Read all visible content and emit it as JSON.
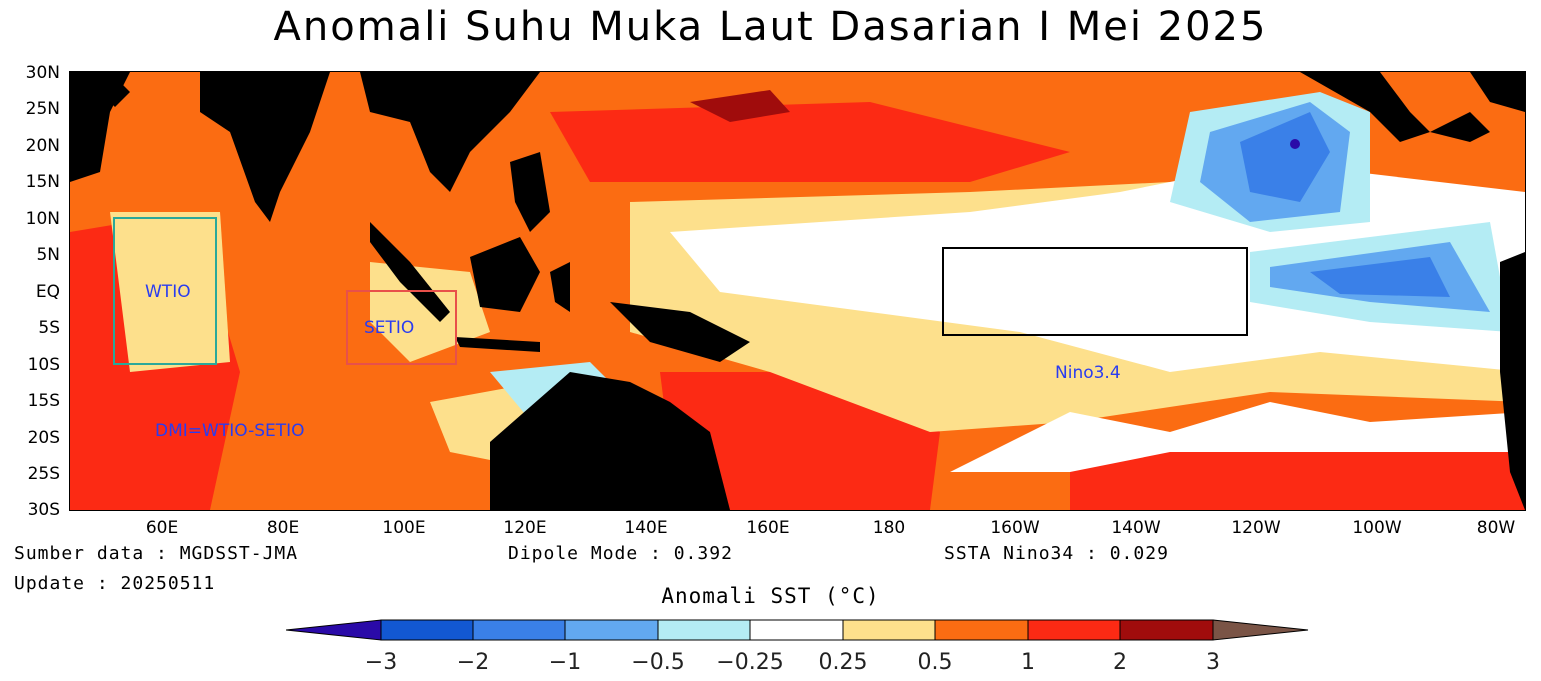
{
  "title": "Anomali Suhu Muka Laut Dasarian I Mei 2025",
  "y_ticks": [
    "30N",
    "25N",
    "20N",
    "15N",
    "10N",
    "5N",
    "EQ",
    "5S",
    "10S",
    "15S",
    "20S",
    "25S",
    "30S"
  ],
  "x_ticks": [
    "60E",
    "80E",
    "100E",
    "120E",
    "140E",
    "160E",
    "180",
    "160W",
    "140W",
    "120W",
    "100W",
    "80W"
  ],
  "boxes": {
    "wtio": {
      "label": "WTIO",
      "color": "#2aa89a"
    },
    "setio": {
      "label": "SETIO",
      "color": "#e8504a"
    },
    "nino34": {
      "label": "Nino3.4",
      "color": "#000000"
    },
    "dmi_label": "DMI=WTIO-SETIO"
  },
  "footer": {
    "source": "Sumber data : MGDSST-JMA",
    "update": "Update : 20250511",
    "dipole": "Dipole Mode : 0.392",
    "nino": "SSTA Nino34 : 0.029"
  },
  "colorbar": {
    "title": "Anomali SST (°C)",
    "labels": [
      "−3",
      "−2",
      "−1",
      "−0.5",
      "−0.25",
      "0.25",
      "0.5",
      "1",
      "2",
      "3"
    ],
    "colors": [
      "#2a0aa8",
      "#1258d2",
      "#3a80e8",
      "#62a8f0",
      "#b4ecf4",
      "#ffffff",
      "#fde08c",
      "#fb6c12",
      "#fc2a14",
      "#a00c0c",
      "#7a5446"
    ]
  }
}
